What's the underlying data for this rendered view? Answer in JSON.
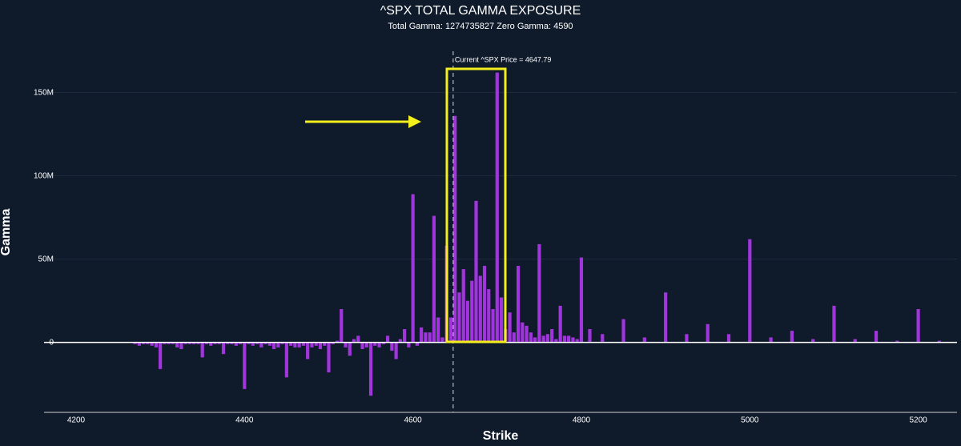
{
  "chart_data": {
    "type": "bar",
    "title": "^SPX TOTAL GAMMA EXPOSURE",
    "subtitle": "Total Gamma: 1274735827 Zero Gamma: 4590",
    "xlabel": "Strike",
    "ylabel": "Gamma",
    "color": "#a035dc",
    "grid": true,
    "xlim": [
      4162,
      5246
    ],
    "xticks": [
      4200,
      4400,
      4600,
      4800,
      5000,
      5200
    ],
    "ylim": [
      -42000000.0,
      178000000.0
    ],
    "yticks": [
      0,
      {
        "value": 50000000.0,
        "label": "50M"
      },
      {
        "value": 100000000.0,
        "label": "100M"
      },
      {
        "value": 150000000.0,
        "label": "150M"
      }
    ],
    "annotations": [
      {
        "text": "Current ^SPX Price = 4647.79",
        "x": 4647.79
      }
    ],
    "x": [
      4270,
      4275,
      4280,
      4285,
      4290,
      4295,
      4300,
      4305,
      4310,
      4315,
      4320,
      4325,
      4330,
      4335,
      4340,
      4345,
      4350,
      4355,
      4360,
      4365,
      4370,
      4375,
      4380,
      4385,
      4390,
      4395,
      4400,
      4405,
      4410,
      4415,
      4420,
      4425,
      4430,
      4435,
      4440,
      4445,
      4450,
      4455,
      4460,
      4465,
      4470,
      4475,
      4480,
      4485,
      4490,
      4495,
      4500,
      4505,
      4510,
      4515,
      4520,
      4525,
      4530,
      4535,
      4540,
      4545,
      4550,
      4555,
      4560,
      4565,
      4570,
      4575,
      4580,
      4585,
      4590,
      4595,
      4600,
      4605,
      4610,
      4615,
      4620,
      4625,
      4630,
      4635,
      4640,
      4645,
      4650,
      4655,
      4660,
      4665,
      4670,
      4675,
      4680,
      4685,
      4690,
      4695,
      4700,
      4705,
      4710,
      4715,
      4720,
      4725,
      4730,
      4735,
      4740,
      4745,
      4750,
      4755,
      4760,
      4765,
      4770,
      4775,
      4780,
      4785,
      4790,
      4795,
      4800,
      4810,
      4825,
      4850,
      4875,
      4900,
      4925,
      4950,
      4975,
      5000,
      5025,
      5050,
      5075,
      5100,
      5125,
      5150,
      5175,
      5200,
      5225
    ],
    "values": [
      -1000000.0,
      -2000000.0,
      -1000000.0,
      -1000000.0,
      -2000000.0,
      -3000000.0,
      -16000000.0,
      -1000000.0,
      -1000000.0,
      -1000000.0,
      -3000000.0,
      -4000000.0,
      -1000000.0,
      -1000000.0,
      -1000000.0,
      -1000000.0,
      -9000000.0,
      -1000000.0,
      -2000000.0,
      -1000000.0,
      -1000000.0,
      -7000000.0,
      -1000000.0,
      -1000000.0,
      -2000000.0,
      -1000000.0,
      -28000000.0,
      -1000000.0,
      -2000000.0,
      -1000000.0,
      -3000000.0,
      -1000000.0,
      -2000000.0,
      -4000000.0,
      -3000000.0,
      -1000000.0,
      -21000000.0,
      -2000000.0,
      -3000000.0,
      -3000000.0,
      -2000000.0,
      -10000000.0,
      -3000000.0,
      -2000000.0,
      -4000000.0,
      -2000000.0,
      -18000000.0,
      -1000000.0,
      1000000.0,
      20000000.0,
      -3000000.0,
      -8000000.0,
      2000000.0,
      4000000.0,
      -4000000.0,
      -3000000.0,
      -32000000.0,
      -2000000.0,
      -3000000.0,
      -1000000.0,
      4000000.0,
      -5000000.0,
      -10000000.0,
      2000000.0,
      8000000.0,
      -3000000.0,
      89000000.0,
      -2000000.0,
      9000000.0,
      6000000.0,
      6000000.0,
      76000000.0,
      15000000.0,
      3000000.0,
      58000000.0,
      15000000.0,
      136000000.0,
      30000000.0,
      44000000.0,
      25000000.0,
      37000000.0,
      85000000.0,
      40000000.0,
      46000000.0,
      32000000.0,
      20000000.0,
      162000000.0,
      27000000.0,
      8000000.0,
      18000000.0,
      6000000.0,
      46000000.0,
      12000000.0,
      10000000.0,
      6000000.0,
      3000000.0,
      59000000.0,
      4000000.0,
      5000000.0,
      8000000.0,
      2000000.0,
      22000000.0,
      4000000.0,
      4000000.0,
      3000000.0,
      2000000.0,
      51000000.0,
      8000000.0,
      5000000.0,
      14000000.0,
      3000000.0,
      30000000.0,
      5000000.0,
      11000000.0,
      5000000.0,
      62000000.0,
      3000000.0,
      7000000.0,
      2000000.0,
      22000000.0,
      2000000.0,
      7000000.0,
      1000000.0,
      20000000.0,
      1000000.0
    ]
  }
}
